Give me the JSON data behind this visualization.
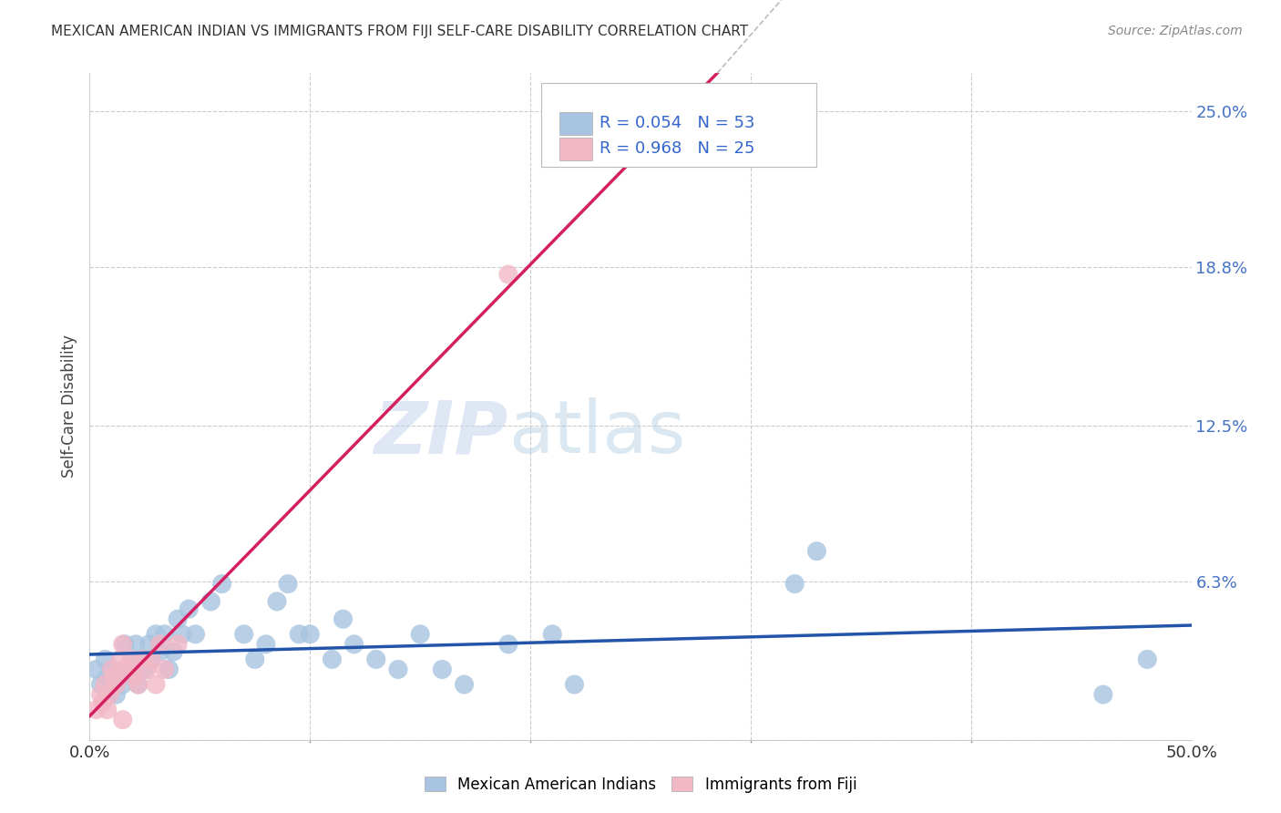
{
  "title": "MEXICAN AMERICAN INDIAN VS IMMIGRANTS FROM FIJI SELF-CARE DISABILITY CORRELATION CHART",
  "source": "Source: ZipAtlas.com",
  "ylabel": "Self-Care Disability",
  "xlabel": "",
  "xlim": [
    0,
    0.5
  ],
  "ylim": [
    0.0,
    0.265
  ],
  "yticks": [
    0.0,
    0.063,
    0.125,
    0.188,
    0.25
  ],
  "ytick_labels": [
    "",
    "6.3%",
    "12.5%",
    "18.8%",
    "25.0%"
  ],
  "xticks": [
    0.0,
    0.1,
    0.2,
    0.3,
    0.4,
    0.5
  ],
  "xtick_labels": [
    "0.0%",
    "",
    "",
    "",
    "",
    "50.0%"
  ],
  "legend_labels": [
    "Mexican American Indians",
    "Immigrants from Fiji"
  ],
  "blue_color": "#a8c4e0",
  "pink_color": "#f2b8c6",
  "blue_line_color": "#2255aa",
  "pink_line_color": "#d42060",
  "r_blue": "R = 0.054",
  "n_blue": "N = 53",
  "r_pink": "R = 0.968",
  "n_pink": "N = 25",
  "watermark_zip": "ZIP",
  "watermark_atlas": "atlas",
  "blue_points_x": [
    0.003,
    0.005,
    0.007,
    0.008,
    0.009,
    0.01,
    0.011,
    0.012,
    0.013,
    0.015,
    0.016,
    0.018,
    0.019,
    0.02,
    0.021,
    0.022,
    0.024,
    0.025,
    0.027,
    0.028,
    0.03,
    0.032,
    0.034,
    0.036,
    0.038,
    0.04,
    0.042,
    0.045,
    0.048,
    0.055,
    0.06,
    0.07,
    0.075,
    0.08,
    0.085,
    0.09,
    0.095,
    0.1,
    0.11,
    0.115,
    0.12,
    0.13,
    0.14,
    0.15,
    0.16,
    0.17,
    0.19,
    0.21,
    0.22,
    0.32,
    0.33,
    0.46,
    0.48
  ],
  "blue_points_y": [
    0.028,
    0.022,
    0.032,
    0.025,
    0.018,
    0.028,
    0.022,
    0.018,
    0.025,
    0.022,
    0.038,
    0.028,
    0.032,
    0.025,
    0.038,
    0.022,
    0.032,
    0.028,
    0.038,
    0.032,
    0.042,
    0.035,
    0.042,
    0.028,
    0.035,
    0.048,
    0.042,
    0.052,
    0.042,
    0.055,
    0.062,
    0.042,
    0.032,
    0.038,
    0.055,
    0.062,
    0.042,
    0.042,
    0.032,
    0.048,
    0.038,
    0.032,
    0.028,
    0.042,
    0.028,
    0.022,
    0.038,
    0.042,
    0.022,
    0.062,
    0.075,
    0.018,
    0.032
  ],
  "pink_points_x": [
    0.003,
    0.005,
    0.006,
    0.007,
    0.008,
    0.009,
    0.01,
    0.011,
    0.012,
    0.014,
    0.015,
    0.016,
    0.018,
    0.019,
    0.02,
    0.022,
    0.024,
    0.026,
    0.028,
    0.03,
    0.032,
    0.034,
    0.04,
    0.015,
    0.19
  ],
  "pink_points_y": [
    0.012,
    0.018,
    0.015,
    0.022,
    0.012,
    0.018,
    0.028,
    0.025,
    0.022,
    0.032,
    0.038,
    0.028,
    0.028,
    0.032,
    0.025,
    0.022,
    0.032,
    0.028,
    0.032,
    0.022,
    0.038,
    0.028,
    0.038,
    0.008,
    0.185
  ]
}
